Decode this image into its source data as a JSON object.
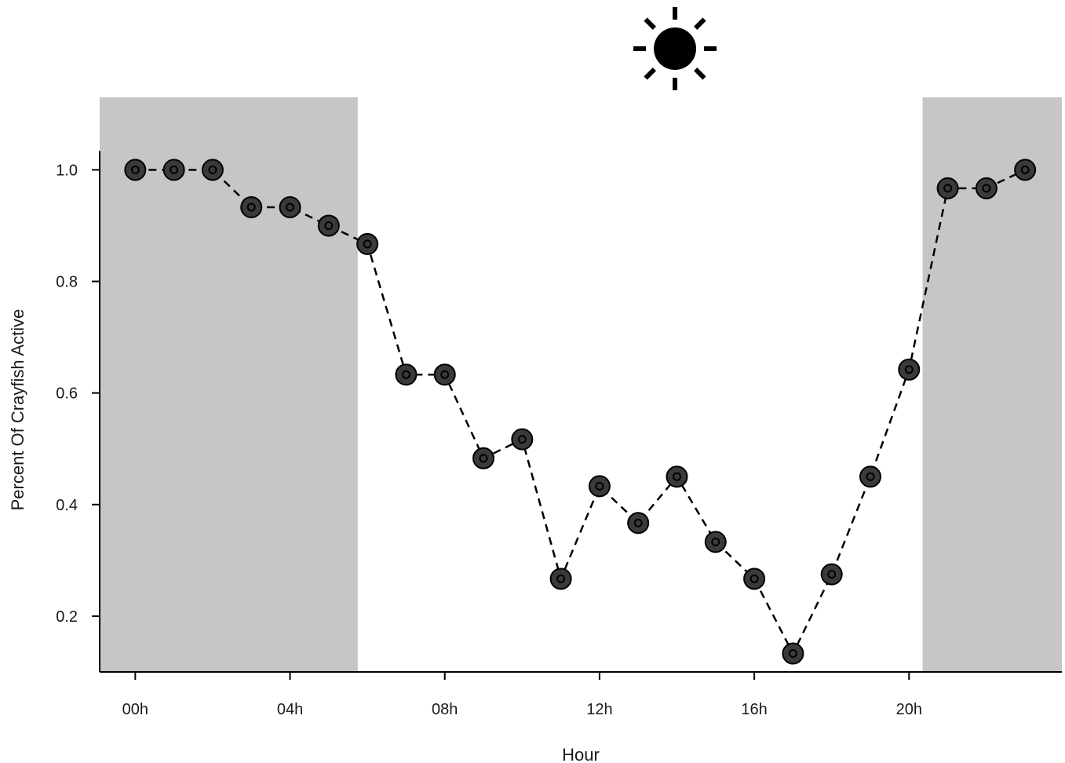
{
  "chart_data": {
    "type": "line",
    "title": "",
    "xlabel": "Hour",
    "ylabel": "Percent Of Crayfish Active",
    "x": [
      0,
      1,
      2,
      3,
      4,
      5,
      6,
      7,
      8,
      9,
      10,
      11,
      12,
      13,
      14,
      15,
      16,
      17,
      18,
      19,
      20,
      21,
      22,
      23
    ],
    "values": [
      1.0,
      1.0,
      1.0,
      0.933,
      0.933,
      0.9,
      0.867,
      0.633,
      0.633,
      0.483,
      0.517,
      0.267,
      0.433,
      0.367,
      0.45,
      0.333,
      0.267,
      0.133,
      0.275,
      0.45,
      0.642,
      0.967,
      0.967,
      1.0
    ],
    "x_ticks": [
      {
        "value": 0,
        "label": "00h"
      },
      {
        "value": 4,
        "label": "04h"
      },
      {
        "value": 8,
        "label": "08h"
      },
      {
        "value": 12,
        "label": "12h"
      },
      {
        "value": 16,
        "label": "16h"
      },
      {
        "value": 20,
        "label": "20h"
      }
    ],
    "y_ticks": [
      {
        "value": 0.2,
        "label": "0.2"
      },
      {
        "value": 0.4,
        "label": "0.4"
      },
      {
        "value": 0.6,
        "label": "0.6"
      },
      {
        "value": 0.8,
        "label": "0.8"
      },
      {
        "value": 1.0,
        "label": "1.0"
      }
    ],
    "xlim": [
      -0.92,
      23.95
    ],
    "ylim": [
      0.1,
      1.13
    ],
    "night_bands": [
      {
        "start": -0.92,
        "end": 5.75
      },
      {
        "start": 20.35,
        "end": 23.95
      }
    ],
    "markers": [
      {
        "icon": "moon-icon",
        "x": 2.05
      },
      {
        "icon": "sun-icon",
        "x": 13.95
      },
      {
        "icon": "moon-icon",
        "x": 22.0
      }
    ],
    "line_style": "dashed",
    "grid": false,
    "colors": {
      "band": "#c6c6c6",
      "point_fill": "#3a3a3a",
      "line": "#000000",
      "axis": "#000000"
    }
  }
}
